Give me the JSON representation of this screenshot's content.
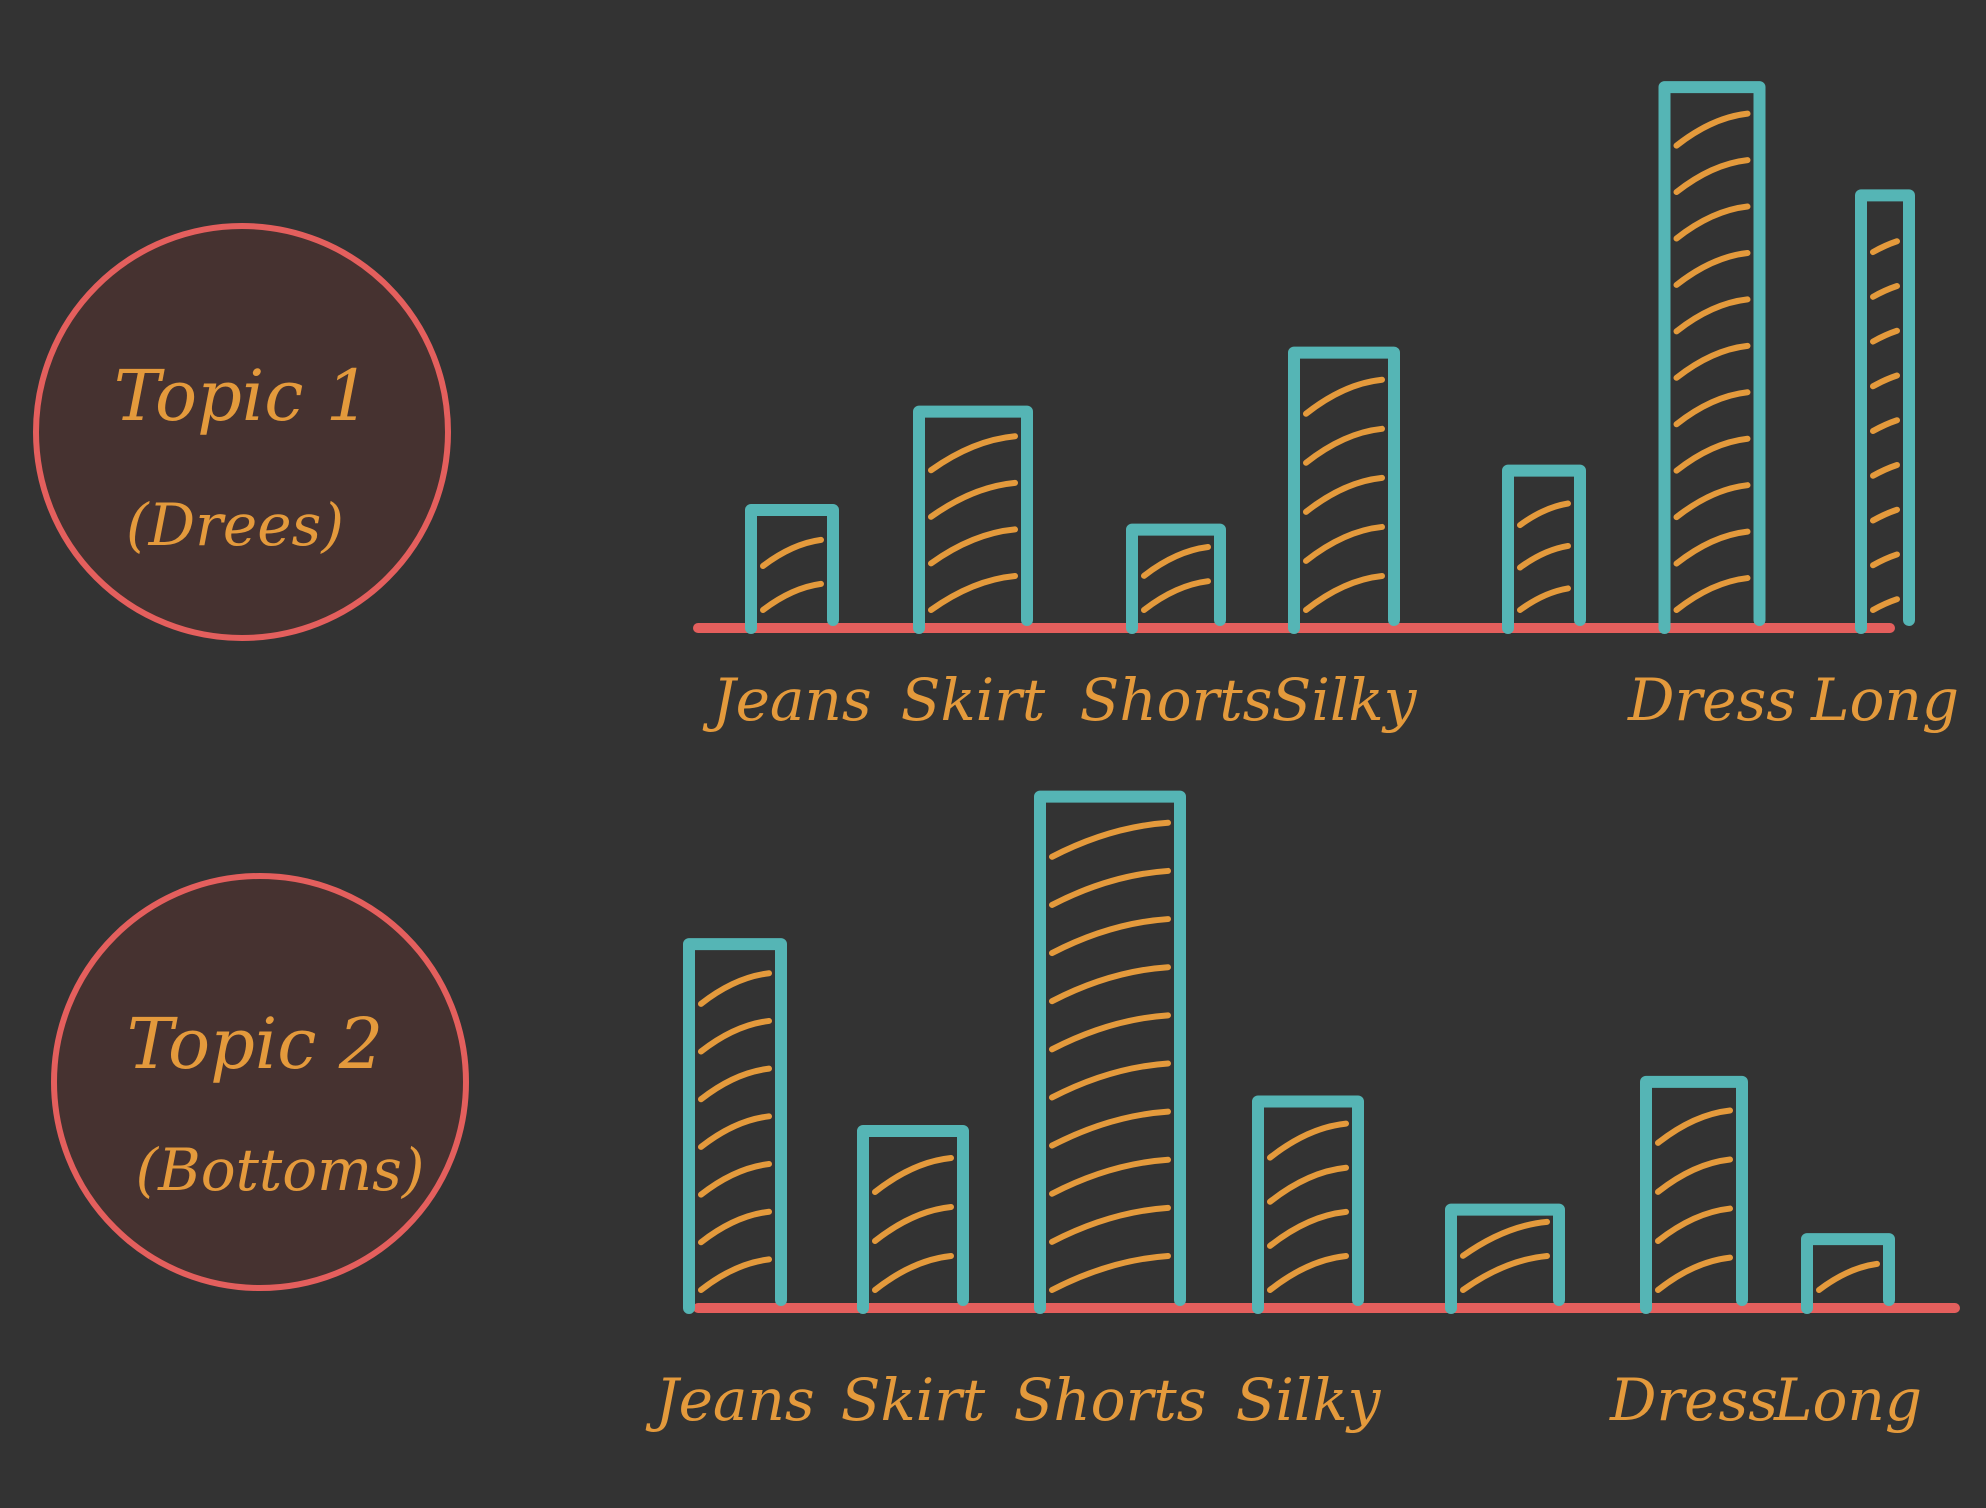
{
  "colors": {
    "background": "#333333",
    "circle_fill": "#463230",
    "circle_stroke": "#E45F5D",
    "bar_stroke": "#55B5B5",
    "hatch": "#E49A3C",
    "axis": "#E45F5D",
    "text": "#E49A3C"
  },
  "topics": [
    {
      "title": "Topic 1",
      "subtitle": "(Drees)"
    },
    {
      "title": "Topic 2",
      "subtitle": "(Bottoms)"
    }
  ],
  "chart_data": [
    {
      "type": "bar",
      "title": "",
      "categories": [
        "Jeans",
        "Skirt",
        "Shorts",
        "Silky",
        "",
        "Dress",
        "Long"
      ],
      "values": [
        12,
        22,
        10,
        28,
        16,
        55,
        44
      ],
      "ylim": [
        0,
        60
      ],
      "grid": false
    },
    {
      "type": "bar",
      "title": "",
      "categories": [
        "Jeans",
        "Skirt",
        "Shorts",
        "Silky",
        "",
        "Dress",
        "Long"
      ],
      "values": [
        37,
        18,
        52,
        21,
        10,
        23,
        7
      ],
      "ylim": [
        0,
        60
      ],
      "grid": false
    }
  ]
}
